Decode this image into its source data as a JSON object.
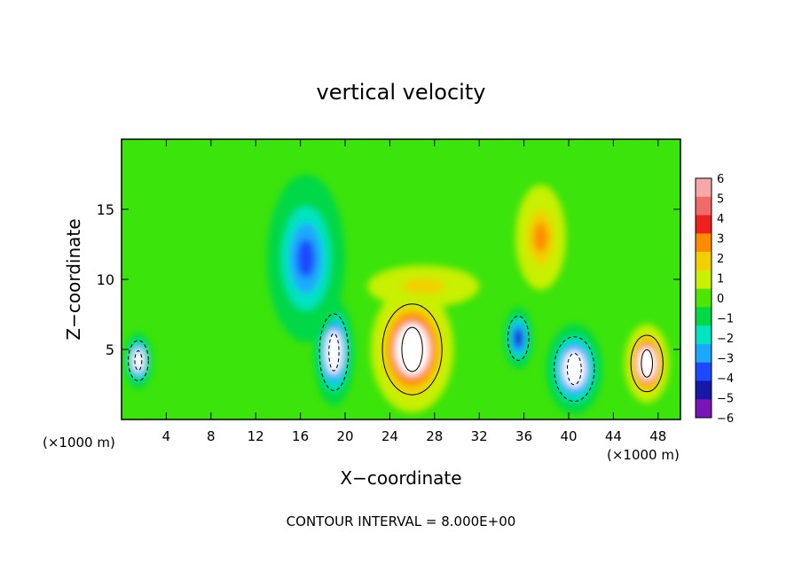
{
  "chart_data": {
    "type": "heatmap",
    "title": "vertical velocity",
    "xlabel": "X−coordinate",
    "ylabel": "Z−coordinate",
    "x_unit_left": "(×1000 m)",
    "x_unit_right": "(×1000 m)",
    "footer": "CONTOUR INTERVAL = 8.000E+00",
    "xlim": [
      0,
      50
    ],
    "ylim": [
      0,
      20
    ],
    "x_ticks": [
      "4",
      "8",
      "12",
      "16",
      "20",
      "24",
      "28",
      "32",
      "36",
      "40",
      "44",
      "48"
    ],
    "x_tick_values": [
      4,
      8,
      12,
      16,
      20,
      24,
      28,
      32,
      36,
      40,
      44,
      48
    ],
    "y_ticks": [
      "5",
      "10",
      "15"
    ],
    "y_tick_values": [
      5,
      10,
      15
    ],
    "colorbar": {
      "labels": [
        "6",
        "5",
        "4",
        "3",
        "2",
        "1",
        "0",
        "−1",
        "−2",
        "−3",
        "−4",
        "−5",
        "−6"
      ],
      "values": [
        6,
        5,
        4,
        3,
        2,
        1,
        0,
        -1,
        -2,
        -3,
        -4,
        -5,
        -6
      ],
      "colors": [
        "#f6a7a7",
        "#f06a6a",
        "#ee2020",
        "#ff8c00",
        "#f2d000",
        "#c8f000",
        "#4ee600",
        "#00d846",
        "#00e4c2",
        "#1aa9ff",
        "#1c48ff",
        "#1818a8",
        "#7a14b8"
      ]
    },
    "features": [
      {
        "x": 26,
        "z": 5,
        "w": 7.4,
        "h": 9.0,
        "value": 6
      },
      {
        "x": 47,
        "z": 4,
        "w": 4.0,
        "h": 5.6,
        "value": 6
      },
      {
        "x": 1.5,
        "z": 4.2,
        "w": 2.5,
        "h": 4.0,
        "value": -6
      },
      {
        "x": 19,
        "z": 4.8,
        "w": 3.6,
        "h": 7.6,
        "value": -6
      },
      {
        "x": 40.5,
        "z": 3.6,
        "w": 5.0,
        "h": 6.4,
        "value": -6
      },
      {
        "x": 35.5,
        "z": 5.8,
        "w": 2.6,
        "h": 4.4,
        "value": -5
      },
      {
        "x": 16.5,
        "z": 11.5,
        "w": 7.0,
        "h": 12.0,
        "value": -4
      },
      {
        "x": 37.5,
        "z": 13,
        "w": 4.5,
        "h": 7.5,
        "value": 3
      },
      {
        "x": 27,
        "z": 9.5,
        "w": 10.0,
        "h": 3.0,
        "value": 2
      }
    ]
  }
}
